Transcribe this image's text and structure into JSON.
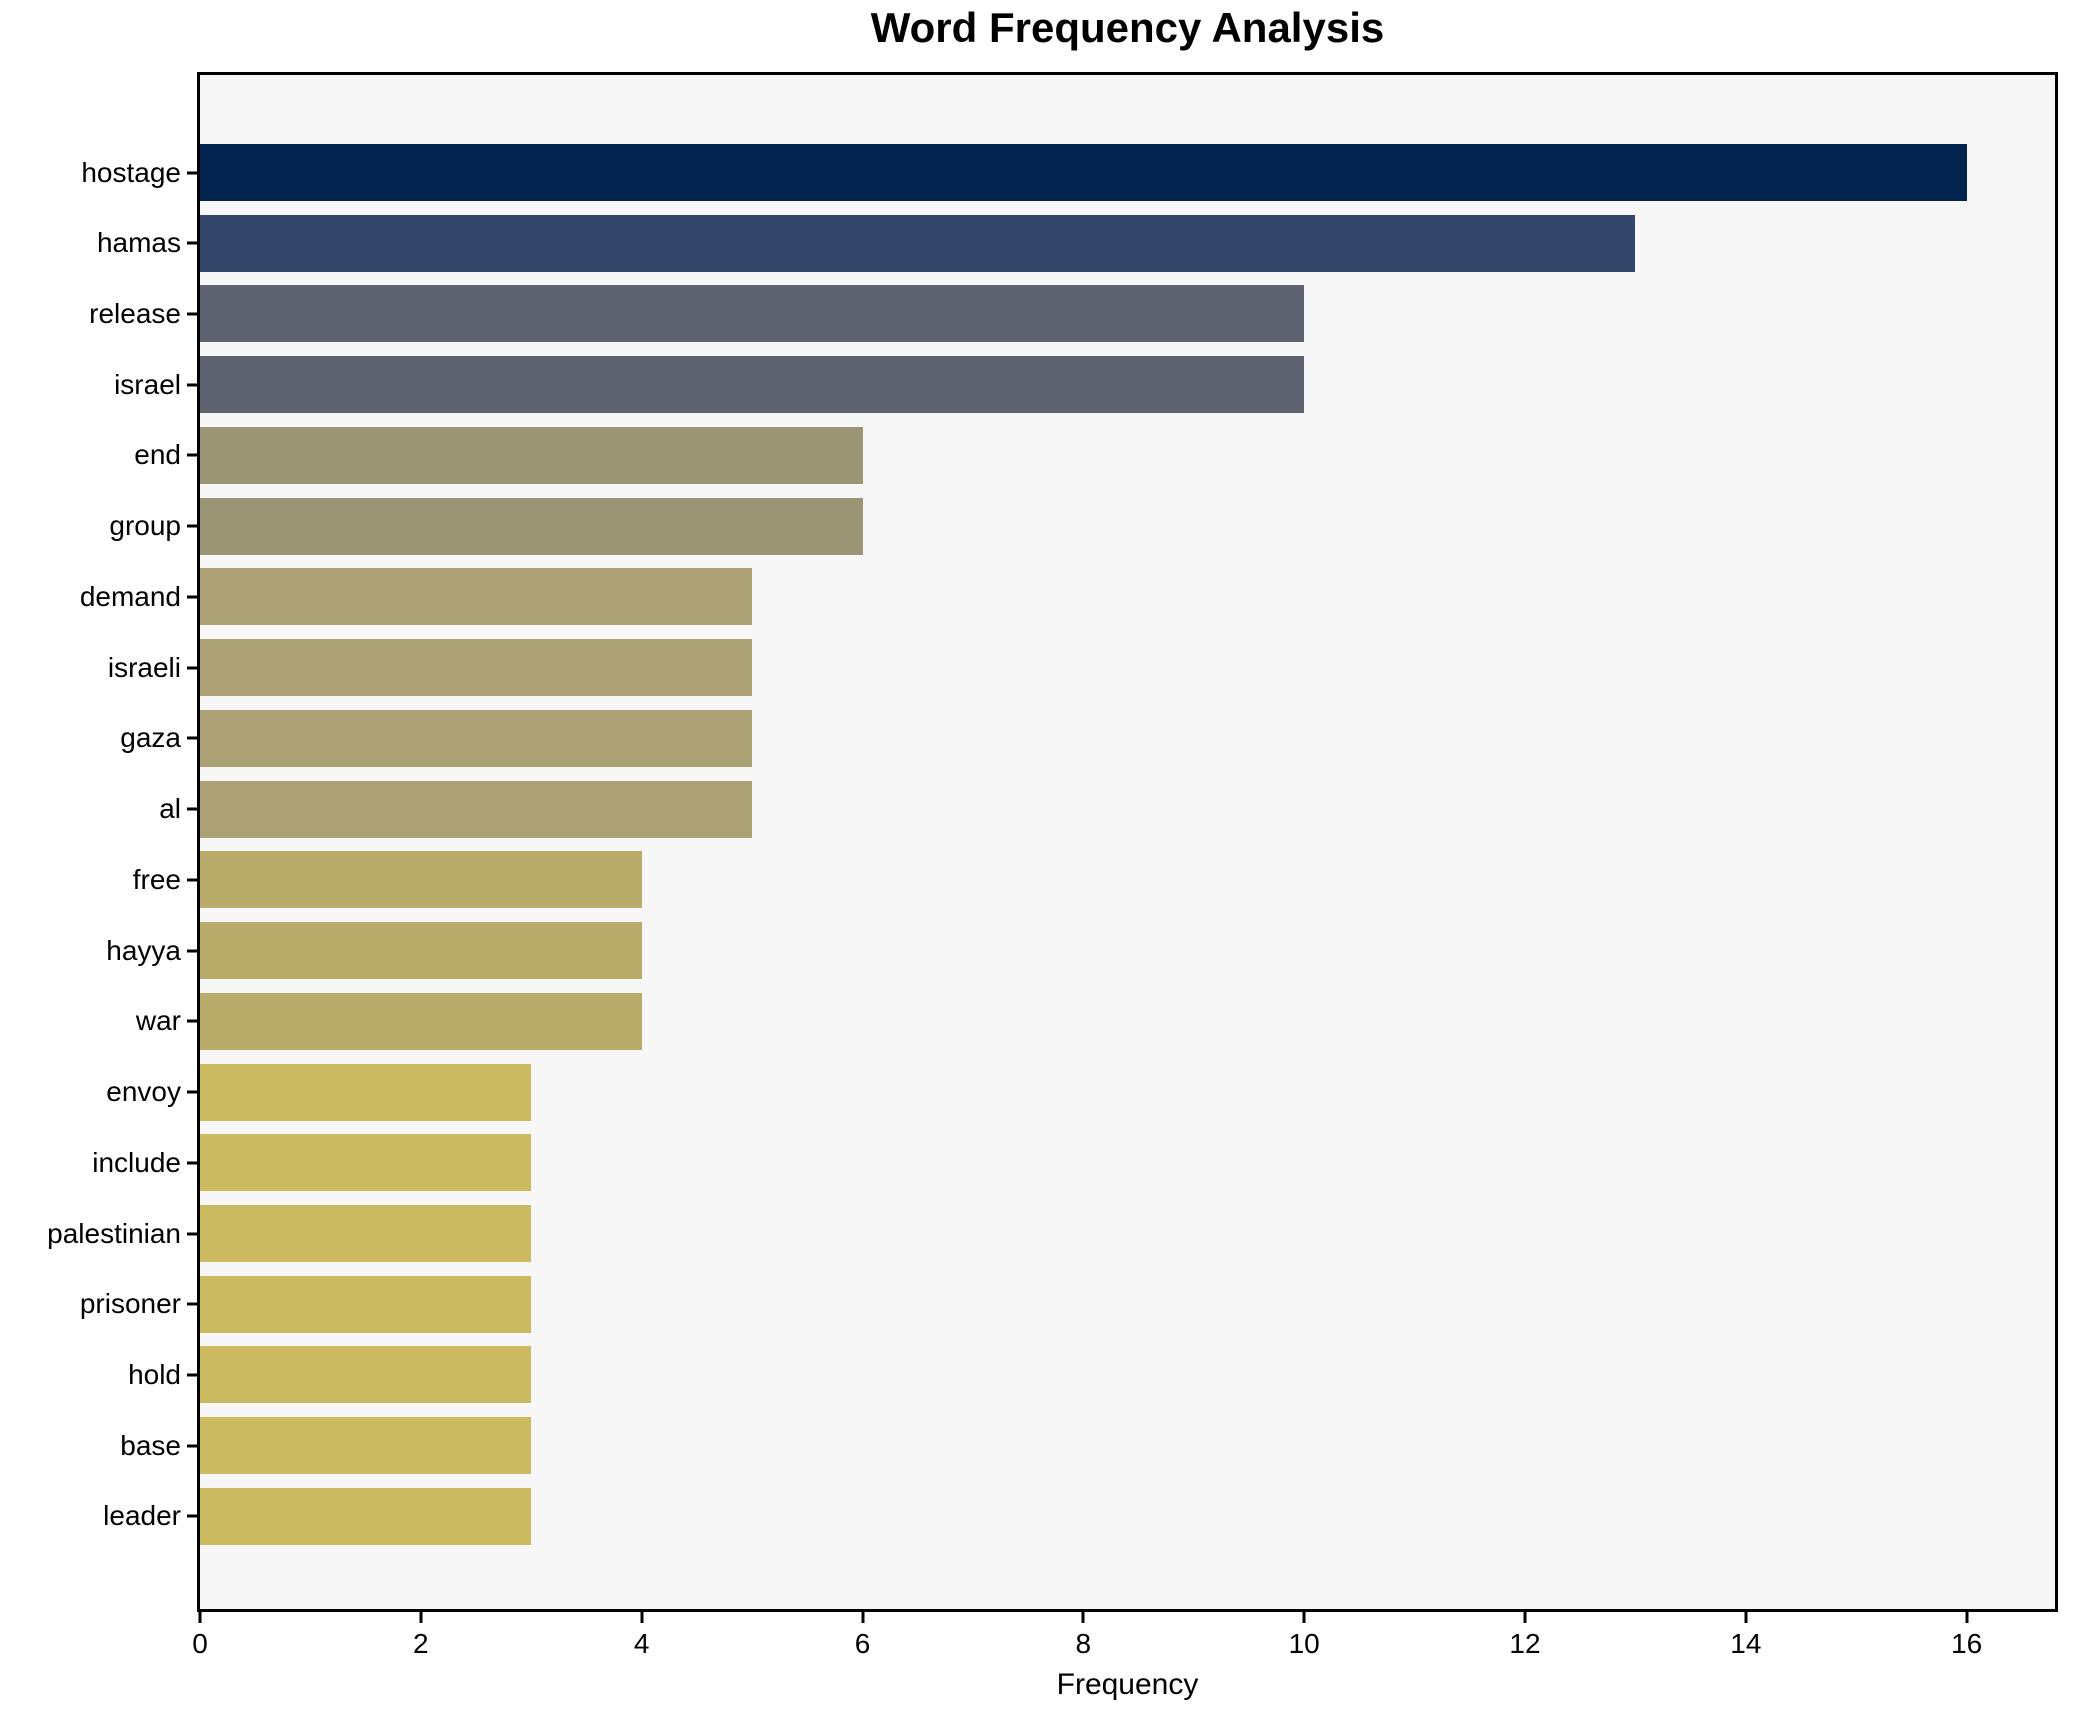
{
  "chart_data": {
    "type": "bar",
    "orientation": "horizontal",
    "title": "Word Frequency Analysis",
    "xlabel": "Frequency",
    "ylabel": "",
    "categories": [
      "hostage",
      "hamas",
      "release",
      "israel",
      "end",
      "group",
      "demand",
      "israeli",
      "gaza",
      "al",
      "free",
      "hayya",
      "war",
      "envoy",
      "include",
      "palestinian",
      "prisoner",
      "hold",
      "base",
      "leader"
    ],
    "values": [
      16,
      13,
      10,
      10,
      6,
      6,
      5,
      5,
      5,
      5,
      4,
      4,
      4,
      3,
      3,
      3,
      3,
      3,
      3,
      3
    ],
    "bar_colors": [
      "#02234e",
      "#334569",
      "#5d626e",
      "#5d626e",
      "#9a9574",
      "#9a9574",
      "#aca174",
      "#aca174",
      "#aca174",
      "#aca174",
      "#b9ac6b",
      "#b9ac6b",
      "#b9ac6b",
      "#ccba60",
      "#ccba60",
      "#ccba60",
      "#ccba60",
      "#ccba60",
      "#ccba60",
      "#ccba60"
    ],
    "xlim": [
      0,
      16.8
    ],
    "xticks": [
      0,
      2,
      4,
      6,
      8,
      10,
      12,
      14,
      16
    ],
    "grid": false,
    "legend": null,
    "plot_bg": "#f7f7f7",
    "fig_bg": "#ffffff",
    "spine_color": "#000000",
    "text_color": "#000000"
  }
}
